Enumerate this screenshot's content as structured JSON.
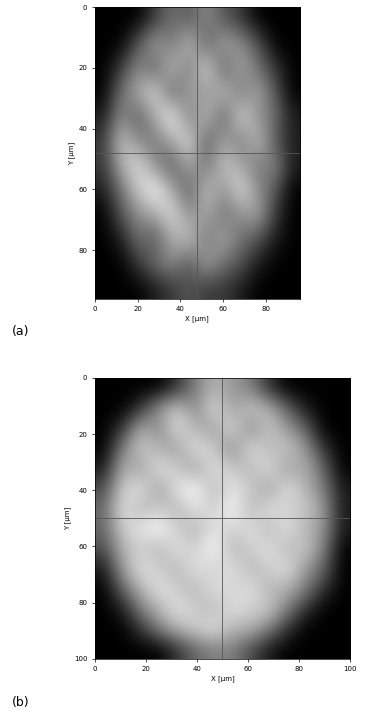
{
  "chart_data": [
    {
      "type": "heatmap",
      "panel_label": "(a)",
      "x_label": "X [µm]",
      "y_label": "Y [µm]",
      "xlim": [
        0,
        96
      ],
      "ylim": [
        96,
        0
      ],
      "xticks": [
        0,
        20,
        40,
        60,
        80
      ],
      "yticks": [
        0,
        20,
        40,
        60,
        80
      ],
      "crosshair": [
        48,
        48
      ],
      "color": "gray",
      "cells": [
        [
          0,
          0,
          0,
          0.2,
          0.4,
          0.3,
          0.5,
          0.3,
          0.2,
          0,
          0,
          0
        ],
        [
          0,
          0,
          0.3,
          0.6,
          0.4,
          0.7,
          0.3,
          0.6,
          0.5,
          0.3,
          0,
          0
        ],
        [
          0,
          0.2,
          0.5,
          0.3,
          0.7,
          0.4,
          0.8,
          0.3,
          0.6,
          0.4,
          0.2,
          0
        ],
        [
          0,
          0.4,
          0.6,
          0.8,
          0.3,
          0.6,
          0.5,
          0.7,
          0.4,
          0.6,
          0.3,
          0
        ],
        [
          0.1,
          0.5,
          0.3,
          0.6,
          0.9,
          0.4,
          0.7,
          0.3,
          0.8,
          0.5,
          0.4,
          0.1
        ],
        [
          0.2,
          0.7,
          0.5,
          0.4,
          0.6,
          0.8,
          0.3,
          0.6,
          0.4,
          0.7,
          0.3,
          0.1
        ],
        [
          0.2,
          0.6,
          0.8,
          0.5,
          0.3,
          0.6,
          0.4,
          0.7,
          0.6,
          0.4,
          0.5,
          0.1
        ],
        [
          0.1,
          0.4,
          0.7,
          0.9,
          0.6,
          0.3,
          0.7,
          0.5,
          0.8,
          0.5,
          0.3,
          0
        ],
        [
          0,
          0.3,
          0.5,
          0.6,
          0.8,
          0.5,
          0.6,
          0.4,
          0.5,
          0.6,
          0.2,
          0
        ],
        [
          0,
          0.1,
          0.4,
          0.3,
          0.6,
          0.7,
          0.4,
          0.6,
          0.4,
          0.3,
          0.1,
          0
        ],
        [
          0,
          0,
          0.2,
          0.4,
          0.5,
          0.3,
          0.6,
          0.4,
          0.3,
          0.1,
          0,
          0
        ],
        [
          0,
          0,
          0,
          0.1,
          0.2,
          0.3,
          0.2,
          0.2,
          0.1,
          0,
          0,
          0
        ]
      ]
    },
    {
      "type": "heatmap",
      "panel_label": "(b)",
      "x_label": "X [µm]",
      "y_label": "Y [µm]",
      "xlim": [
        0,
        100
      ],
      "ylim": [
        100,
        0
      ],
      "xticks": [
        0,
        20,
        40,
        60,
        80,
        100
      ],
      "yticks": [
        0,
        20,
        40,
        60,
        80,
        100
      ],
      "crosshair": [
        50,
        50
      ],
      "color": "gray",
      "cells": [
        [
          0,
          0,
          0,
          0,
          0.2,
          0.5,
          0.7,
          0.6,
          0.5,
          0.2,
          0,
          0,
          0,
          0
        ],
        [
          0,
          0,
          0.2,
          0.6,
          0.8,
          0.5,
          0.9,
          0.6,
          0.8,
          0.7,
          0.4,
          0.1,
          0,
          0
        ],
        [
          0,
          0.2,
          0.7,
          0.5,
          0.9,
          0.7,
          0.6,
          0.9,
          0.5,
          0.8,
          0.6,
          0.4,
          0,
          0
        ],
        [
          0,
          0.5,
          0.8,
          0.7,
          0.6,
          0.9,
          0.8,
          0.5,
          0.9,
          0.7,
          0.8,
          0.6,
          0.2,
          0
        ],
        [
          0.1,
          0.7,
          0.6,
          0.9,
          0.8,
          0.6,
          0.9,
          0.8,
          0.7,
          0.9,
          0.6,
          0.7,
          0.4,
          0
        ],
        [
          0.3,
          0.8,
          0.9,
          0.6,
          0.9,
          1.0,
          0.7,
          0.9,
          0.8,
          0.6,
          0.9,
          0.7,
          0.5,
          0.1
        ],
        [
          0.4,
          0.9,
          0.7,
          0.8,
          0.7,
          0.9,
          0.8,
          1.0,
          0.7,
          0.9,
          0.8,
          0.8,
          0.6,
          0.1
        ],
        [
          0.4,
          0.8,
          0.9,
          1.0,
          0.8,
          0.7,
          0.9,
          0.8,
          0.9,
          0.7,
          0.9,
          0.7,
          0.6,
          0.1
        ],
        [
          0.3,
          0.7,
          0.8,
          0.7,
          0.9,
          0.8,
          1.0,
          0.7,
          0.8,
          0.9,
          0.7,
          0.8,
          0.5,
          0
        ],
        [
          0.1,
          0.6,
          0.9,
          0.8,
          0.7,
          0.9,
          0.8,
          0.9,
          0.7,
          0.8,
          0.9,
          0.6,
          0.4,
          0
        ],
        [
          0,
          0.4,
          0.7,
          0.9,
          0.8,
          0.7,
          0.9,
          0.8,
          0.9,
          0.7,
          0.7,
          0.5,
          0.2,
          0
        ],
        [
          0,
          0.1,
          0.5,
          0.7,
          0.9,
          0.8,
          0.7,
          0.9,
          0.8,
          0.8,
          0.5,
          0.2,
          0,
          0
        ],
        [
          0,
          0,
          0.2,
          0.5,
          0.7,
          0.8,
          0.9,
          0.7,
          0.7,
          0.5,
          0.2,
          0,
          0,
          0
        ],
        [
          0,
          0,
          0,
          0,
          0.2,
          0.4,
          0.5,
          0.5,
          0.3,
          0.1,
          0,
          0,
          0,
          0
        ]
      ]
    }
  ]
}
